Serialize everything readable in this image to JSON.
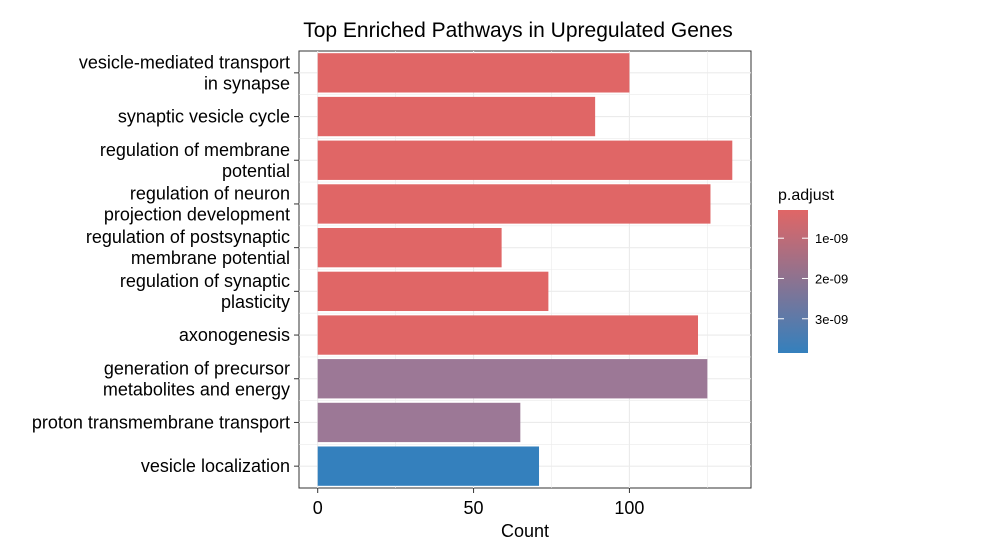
{
  "chart_data": {
    "type": "bar",
    "orientation": "horizontal",
    "title": "Top Enriched Pathways in Upregulated Genes",
    "xlabel": "Count",
    "ylabel": "",
    "xlim": [
      -6,
      139
    ],
    "xticks": [
      0,
      50,
      100
    ],
    "xtick_labels": [
      "0",
      "50",
      "100"
    ],
    "grid": true,
    "categories": [
      [
        "vesicle-mediated transport",
        "in synapse"
      ],
      [
        "synaptic vesicle cycle"
      ],
      [
        "regulation of membrane",
        "potential"
      ],
      [
        "regulation of neuron",
        "projection development"
      ],
      [
        "regulation of postsynaptic",
        "membrane potential"
      ],
      [
        "regulation of synaptic",
        "plasticity"
      ],
      [
        "axonogenesis"
      ],
      [
        "generation of precursor",
        "metabolites and energy"
      ],
      [
        "proton transmembrane transport"
      ],
      [
        "vesicle localization"
      ]
    ],
    "values": [
      100,
      89,
      133,
      126,
      59,
      74,
      122,
      125,
      65,
      71
    ],
    "p_adjust": [
      4e-10,
      4e-10,
      4e-10,
      4e-10,
      4e-10,
      4e-10,
      4e-10,
      2.15e-09,
      2.15e-09,
      3.6e-09
    ],
    "colors": [
      "#e06666",
      "#e06666",
      "#e06666",
      "#e06666",
      "#e06666",
      "#e06666",
      "#e06666",
      "#9c7896",
      "#9c7896",
      "#3480bd"
    ],
    "legend": {
      "title": "p.adjust",
      "placement": "right",
      "color_low": "#e06666",
      "color_high": "#3480bd",
      "range": [
        3e-10,
        3.85e-09
      ],
      "ticks": [
        1e-09,
        2e-09,
        3e-09
      ],
      "tick_labels": [
        "1e-09",
        "2e-09",
        "3e-09"
      ]
    }
  }
}
